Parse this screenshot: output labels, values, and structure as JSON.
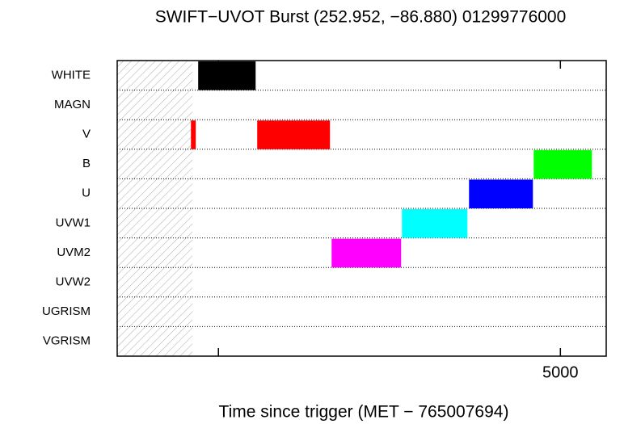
{
  "chart_data": {
    "type": "timeline",
    "title": "SWIFT−UVOT Burst (252.952, −86.880) 01299776000",
    "x_label": "Time since trigger (MET − 765007694)",
    "categories": [
      "WHITE",
      "MAGN",
      "V",
      "B",
      "U",
      "UVW1",
      "UVM2",
      "UVW2",
      "UGRISM",
      "VGRISM"
    ],
    "xlim": [
      -1480,
      5670
    ],
    "xticks": [
      5000
    ],
    "xminorticks": [
      0
    ],
    "shaded_until": -380,
    "bars": [
      {
        "row": 0,
        "start": -296,
        "end": 544,
        "color": "#000000"
      },
      {
        "row": 2,
        "start": -402,
        "end": -331,
        "color": "#ff0000"
      },
      {
        "row": 2,
        "start": 567,
        "end": 1631,
        "color": "#ff0000"
      },
      {
        "row": 3,
        "start": 4610,
        "end": 5461,
        "color": "#00ff00"
      },
      {
        "row": 4,
        "start": 3664,
        "end": 4598,
        "color": "#0000ff"
      },
      {
        "row": 5,
        "start": 2683,
        "end": 3641,
        "color": "#00ffff"
      },
      {
        "row": 6,
        "start": 1655,
        "end": 2671,
        "color": "#ff00ff"
      }
    ]
  }
}
